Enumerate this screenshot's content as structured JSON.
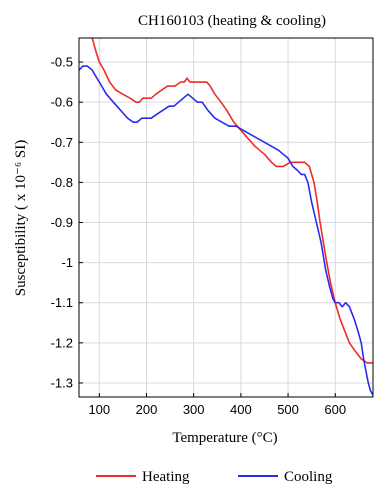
{
  "chart_data": {
    "type": "line",
    "title": "CH160103 (heating & cooling)",
    "xlabel": "Temperature (°C)",
    "ylabel": "Susceptibility ( x 10⁻⁶ SI)",
    "xlim": [
      57,
      680
    ],
    "ylim": [
      -1.335,
      -0.44
    ],
    "xticks": [
      100,
      200,
      300,
      400,
      500,
      600
    ],
    "yticks": [
      -0.5,
      -0.6,
      -0.7,
      -0.8,
      -0.9,
      -1,
      -1.1,
      -1.2,
      -1.3
    ],
    "grid": true,
    "legend_position": "bottom",
    "series": [
      {
        "name": "Heating",
        "color": "#ef2b2b",
        "x": [
          85,
          92,
          100,
          110,
          122,
          135,
          150,
          165,
          178,
          185,
          192,
          200,
          210,
          220,
          232,
          245,
          260,
          272,
          280,
          286,
          292,
          298,
          305,
          312,
          320,
          328,
          335,
          345,
          358,
          370,
          385,
          400,
          415,
          430,
          450,
          465,
          475,
          490,
          505,
          515,
          525,
          535,
          545,
          555,
          562,
          568,
          575,
          582,
          590,
          600,
          610,
          620,
          630,
          642,
          655,
          668,
          680
        ],
        "y": [
          -0.44,
          -0.47,
          -0.5,
          -0.52,
          -0.55,
          -0.57,
          -0.58,
          -0.59,
          -0.6,
          -0.6,
          -0.59,
          -0.59,
          -0.59,
          -0.58,
          -0.57,
          -0.56,
          -0.56,
          -0.55,
          -0.55,
          -0.54,
          -0.55,
          -0.55,
          -0.55,
          -0.55,
          -0.55,
          -0.55,
          -0.56,
          -0.58,
          -0.6,
          -0.62,
          -0.65,
          -0.67,
          -0.69,
          -0.71,
          -0.73,
          -0.75,
          -0.76,
          -0.76,
          -0.75,
          -0.75,
          -0.75,
          -0.75,
          -0.76,
          -0.8,
          -0.85,
          -0.9,
          -0.95,
          -1.0,
          -1.05,
          -1.1,
          -1.14,
          -1.17,
          -1.2,
          -1.22,
          -1.24,
          -1.25,
          -1.25
        ]
      },
      {
        "name": "Cooling",
        "color": "#2b2bef",
        "x": [
          57,
          65,
          75,
          85,
          95,
          105,
          115,
          130,
          145,
          160,
          172,
          180,
          190,
          200,
          210,
          222,
          235,
          248,
          258,
          268,
          278,
          288,
          298,
          308,
          318,
          330,
          345,
          360,
          375,
          390,
          405,
          420,
          435,
          450,
          465,
          480,
          490,
          500,
          510,
          520,
          528,
          535,
          542,
          550,
          560,
          570,
          580,
          588,
          595,
          600,
          608,
          615,
          622,
          630,
          640,
          648,
          655,
          660,
          665,
          670,
          675,
          680
        ],
        "y": [
          -0.52,
          -0.51,
          -0.51,
          -0.52,
          -0.54,
          -0.56,
          -0.58,
          -0.6,
          -0.62,
          -0.64,
          -0.65,
          -0.65,
          -0.64,
          -0.64,
          -0.64,
          -0.63,
          -0.62,
          -0.61,
          -0.61,
          -0.6,
          -0.59,
          -0.58,
          -0.59,
          -0.6,
          -0.6,
          -0.62,
          -0.64,
          -0.65,
          -0.66,
          -0.66,
          -0.67,
          -0.68,
          -0.69,
          -0.7,
          -0.71,
          -0.72,
          -0.73,
          -0.74,
          -0.76,
          -0.77,
          -0.78,
          -0.78,
          -0.8,
          -0.85,
          -0.9,
          -0.95,
          -1.02,
          -1.06,
          -1.09,
          -1.1,
          -1.1,
          -1.11,
          -1.1,
          -1.11,
          -1.14,
          -1.17,
          -1.2,
          -1.24,
          -1.27,
          -1.3,
          -1.32,
          -1.33
        ]
      }
    ]
  }
}
